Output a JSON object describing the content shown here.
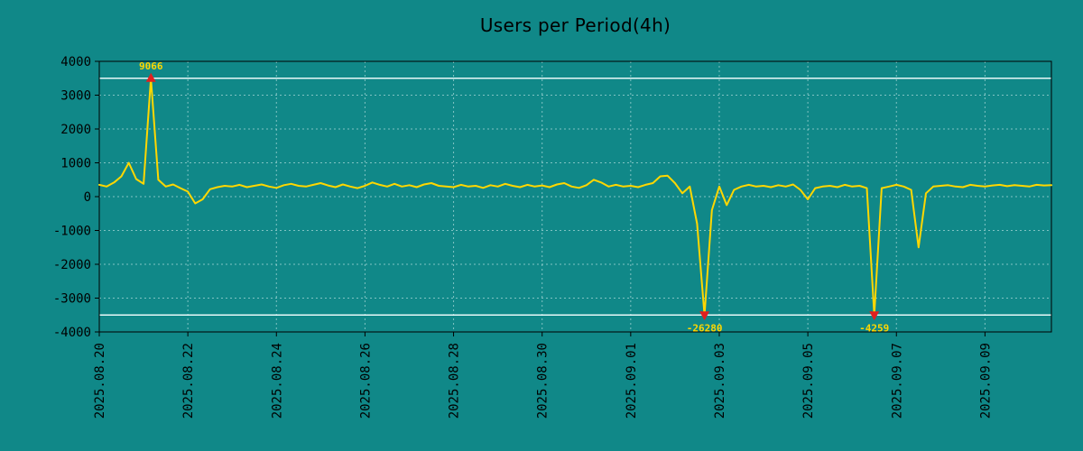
{
  "title": "Users per Period(4h)",
  "colors": {
    "background": "#108888",
    "line": "#ffd700",
    "marker": "#e02020",
    "annotation_text": "#ffd700",
    "grid": "#dcf4f4",
    "clip_line": "#f4ffff",
    "axis": "#000000",
    "title_text": "#000000"
  },
  "chart_data": {
    "type": "line",
    "title": "Users per Period(4h)",
    "series_name": "Users",
    "interval_hours": 4,
    "x_start_label": "2025.08.20",
    "ylim": [
      -4000,
      4000
    ],
    "yticks": [
      4000,
      3000,
      2000,
      1000,
      0,
      -1000,
      -2000,
      -3000,
      -4000
    ],
    "xtick_labels": [
      "2025.08.20",
      "2025.08.22",
      "2025.08.24",
      "2025.08.26",
      "2025.08.28",
      "2025.08.30",
      "2025.09.01",
      "2025.09.03",
      "2025.09.05",
      "2025.09.07",
      "2025.09.09"
    ],
    "xtick_indices": [
      0,
      12,
      24,
      36,
      48,
      60,
      72,
      84,
      96,
      108,
      120
    ],
    "clip_limits": [
      -3500,
      3500
    ],
    "grid": true,
    "legend": false,
    "values": [
      350,
      300,
      420,
      600,
      1000,
      520,
      380,
      9066,
      500,
      300,
      360,
      250,
      150,
      -200,
      -80,
      220,
      280,
      320,
      300,
      350,
      280,
      320,
      360,
      300,
      260,
      340,
      380,
      320,
      300,
      350,
      400,
      330,
      280,
      360,
      300,
      250,
      320,
      420,
      350,
      300,
      380,
      300,
      340,
      280,
      360,
      400,
      320,
      300,
      280,
      350,
      300,
      320,
      260,
      340,
      300,
      380,
      320,
      280,
      350,
      300,
      330,
      280,
      360,
      400,
      300,
      260,
      340,
      500,
      420,
      300,
      350,
      300,
      320,
      280,
      350,
      400,
      600,
      620,
      400,
      100,
      300,
      -800,
      -26280,
      -400,
      300,
      -250,
      200,
      300,
      350,
      300,
      320,
      280,
      340,
      300,
      360,
      200,
      -80,
      250,
      300,
      320,
      280,
      350,
      300,
      320,
      250,
      -4259,
      250,
      300,
      350,
      300,
      200,
      -1500,
      100,
      300,
      320,
      340,
      300,
      280,
      350,
      320,
      300,
      330,
      350,
      310,
      340,
      320,
      300,
      350,
      330,
      340
    ],
    "annotations": [
      {
        "index": 7,
        "value": 9066,
        "label": "9066",
        "direction": "up"
      },
      {
        "index": 82,
        "value": -26280,
        "label": "-26280",
        "direction": "down"
      },
      {
        "index": 105,
        "value": -4259,
        "label": "-4259",
        "direction": "down"
      }
    ]
  }
}
